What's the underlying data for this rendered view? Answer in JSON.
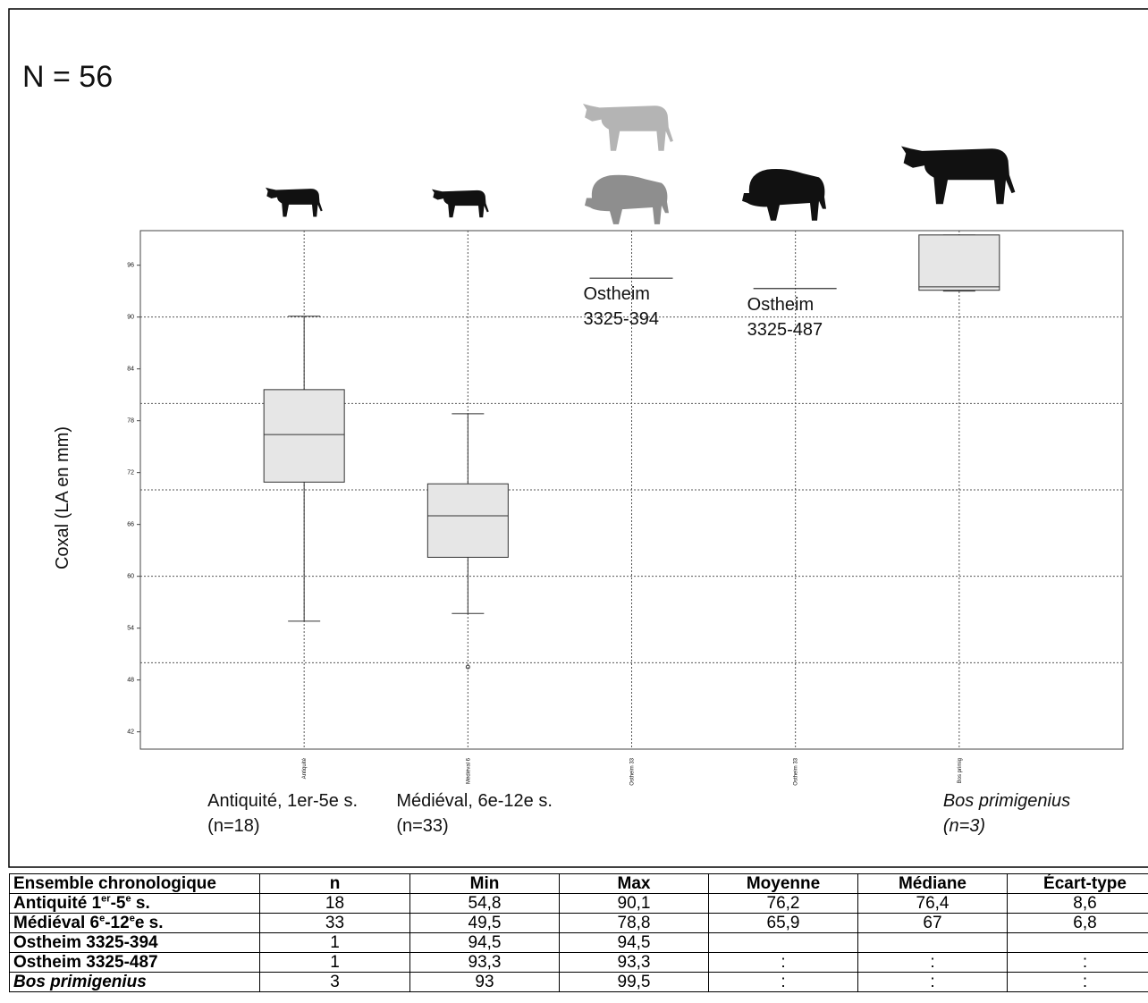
{
  "chart_data": {
    "type": "box",
    "title": "N = 56",
    "y_label": "Coxal (LA en mm)",
    "categories": [
      "Antiquité",
      "Médiéval 6",
      "Ostheim 33",
      "Ostheim 33",
      "Bos primig"
    ],
    "ylim": [
      40,
      100
    ],
    "yticks": [
      42,
      48,
      54,
      60,
      66,
      72,
      78,
      84,
      90,
      96
    ],
    "grid_lines": [
      50,
      60,
      70,
      80,
      90
    ],
    "box_color": "#e6e6e6",
    "boxes": [
      {
        "low": 54.8,
        "q1": 70.9,
        "median": 76.4,
        "q3": 81.6,
        "high": 90.1,
        "outliers": [],
        "caption": [
          "Antiquité, 1er-5e s.",
          "(n=18)"
        ]
      },
      {
        "low": 55.7,
        "q1": 62.2,
        "median": 67,
        "q3": 70.7,
        "high": 78.8,
        "outliers": [
          49.5
        ],
        "caption": [
          "Médiéval, 6e-12e s.",
          "(n=33)"
        ]
      },
      {
        "value": 94.5,
        "annotation": [
          "Ostheim",
          "3325-394"
        ]
      },
      {
        "value": 93.3,
        "annotation": [
          "Ostheim",
          "3325-487"
        ]
      },
      {
        "low": 93,
        "q1": 93.1,
        "median": 93.5,
        "q3": 99.5,
        "high": 99.5,
        "outliers": [],
        "caption": [
          "Bos primigenius",
          "(n=3)"
        ],
        "italic": true
      }
    ]
  },
  "table": {
    "header": [
      "Ensemble chronologique",
      "n",
      "Min",
      "Max",
      "Moyenne",
      "Médiane",
      "Écart-type"
    ],
    "rows": [
      {
        "label": [
          {
            "text": "Antiquité 1"
          },
          {
            "text": "er",
            "sup": true
          },
          {
            "text": "-5"
          },
          {
            "text": "e",
            "sup": true
          },
          {
            "text": " s."
          }
        ],
        "cells": [
          "18",
          "54,8",
          "90,1",
          "76,2",
          "76,4",
          "8,6"
        ]
      },
      {
        "label": [
          {
            "text": "Médiéval 6"
          },
          {
            "text": "e",
            "sup": true
          },
          {
            "text": "-12"
          },
          {
            "text": "e",
            "sup": true
          },
          {
            "text": "e s."
          }
        ],
        "cells": [
          "33",
          "49,5",
          "78,8",
          "65,9",
          "67",
          "6,8"
        ]
      },
      {
        "label": [
          {
            "text": "Ostheim 3325-394"
          }
        ],
        "cells": [
          "1",
          "94,5",
          "94,5",
          null,
          null,
          null
        ]
      },
      {
        "label": [
          {
            "text": "Ostheim 3325-487"
          }
        ],
        "cells": [
          "1",
          "93,3",
          "93,3",
          ":",
          ":",
          ":"
        ]
      },
      {
        "label": [
          {
            "text": "Bos primigenius",
            "italic": true
          }
        ],
        "cells": [
          "3",
          "93",
          "99,5",
          ":",
          ":",
          ":"
        ]
      }
    ]
  }
}
